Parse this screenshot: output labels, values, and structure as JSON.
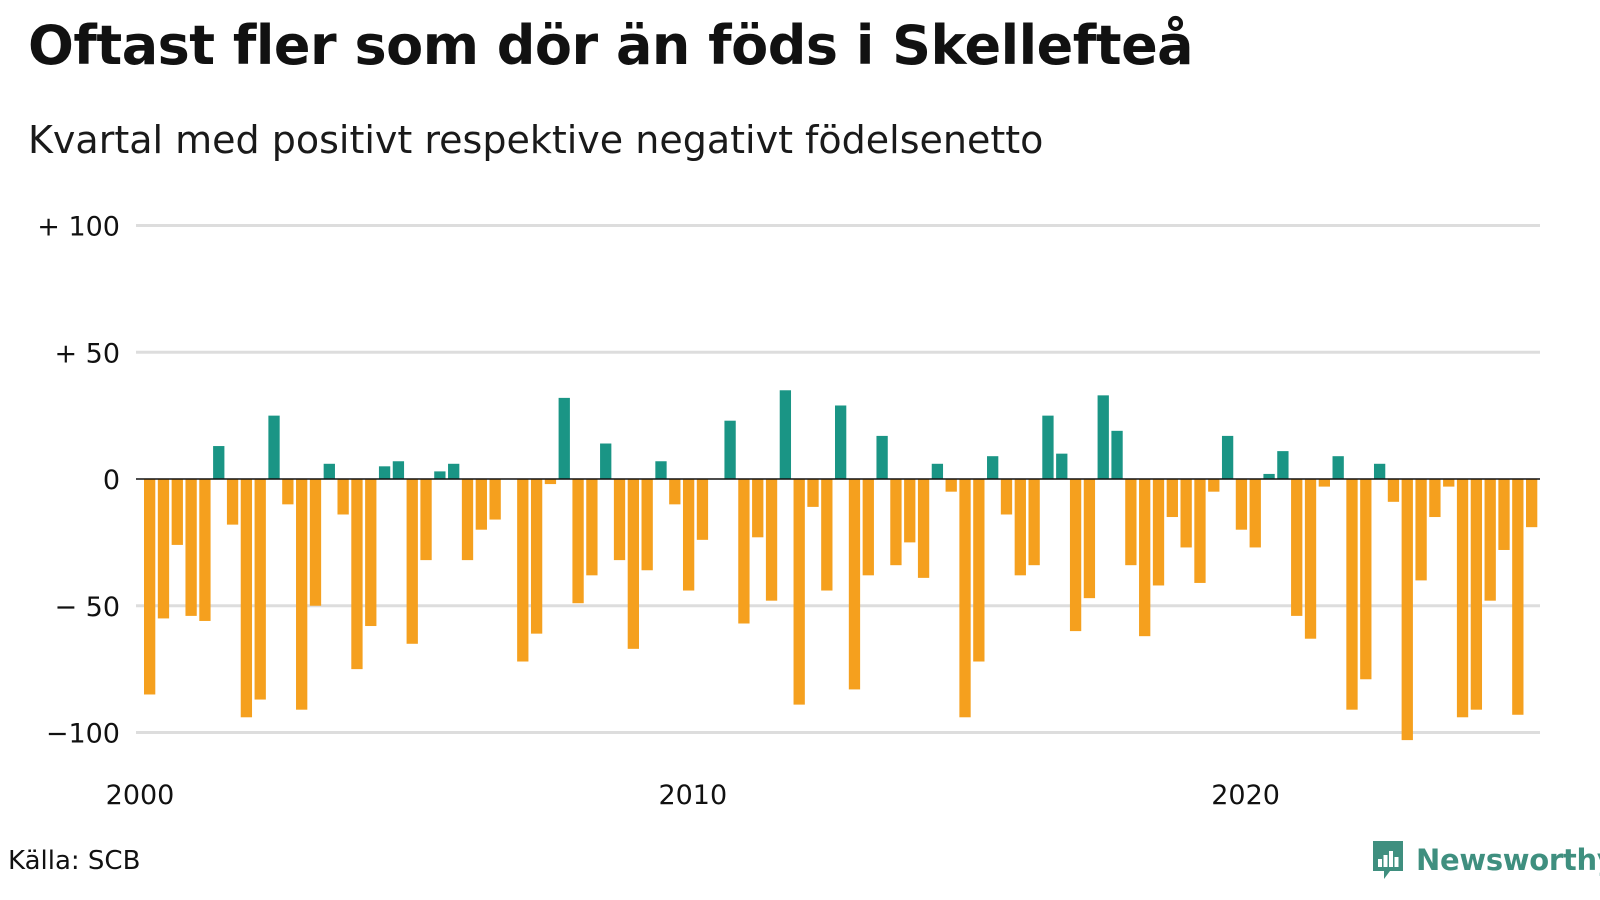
{
  "title": "Oftast fler som dör än föds i Skellefteå",
  "subtitle": "Kvartal med positivt respektive negativt födelsenetto",
  "source": "Källa: SCB",
  "brand": "Newsworthy",
  "icons": {
    "brand": "newsworthy-logo-icon"
  },
  "colors": {
    "positive": "#1a9585",
    "negative": "#f5a01e",
    "grid": "#dddddd",
    "zero": "#111111",
    "brand": "#3f8f7f"
  },
  "chart_data": {
    "type": "bar",
    "title": "Oftast fler som dör än föds i Skellefteå",
    "subtitle": "Kvartal med positivt respektive negativt födelsenetto",
    "ylim": [
      -105,
      100
    ],
    "y_ticks": [
      {
        "value": 100,
        "label": "+ 100"
      },
      {
        "value": 50,
        "label": "+  50"
      },
      {
        "value": 0,
        "label": "0"
      },
      {
        "value": -50,
        "label": "− 50"
      },
      {
        "value": -100,
        "label": "−100"
      }
    ],
    "x_ticks": [
      {
        "index": 0,
        "label": "2000"
      },
      {
        "index": 40,
        "label": "2010"
      },
      {
        "index": 80,
        "label": "2020"
      }
    ],
    "grid": true,
    "start_quarter": "2000 Q1",
    "values": [
      -85,
      -55,
      -26,
      -54,
      -56,
      13,
      -18,
      -94,
      -87,
      25,
      -10,
      -91,
      -50,
      6,
      -14,
      -75,
      -58,
      5,
      7,
      -65,
      -32,
      3,
      6,
      -32,
      -20,
      -16,
      0,
      -72,
      -61,
      -2,
      32,
      -49,
      -38,
      14,
      -32,
      -67,
      -36,
      7,
      -10,
      -44,
      -24,
      0,
      23,
      -57,
      -23,
      -48,
      35,
      -89,
      -11,
      -44,
      29,
      -83,
      -38,
      17,
      -34,
      -25,
      -39,
      6,
      -5,
      -94,
      -72,
      9,
      -14,
      -38,
      -34,
      25,
      10,
      -60,
      -47,
      33,
      19,
      -34,
      -62,
      -42,
      -15,
      -27,
      -41,
      -5,
      17,
      -20,
      -27,
      2,
      11,
      -54,
      -63,
      -3,
      9,
      -91,
      -79,
      6,
      -9,
      -103,
      -40,
      -15,
      -3,
      -94,
      -91,
      -48,
      -28,
      -93,
      -19
    ]
  }
}
